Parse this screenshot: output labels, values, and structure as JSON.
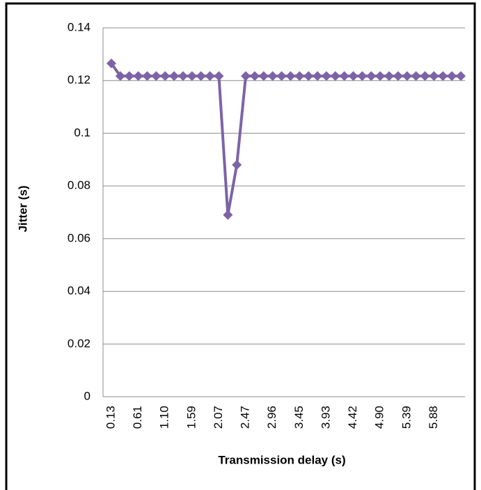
{
  "chart_data": {
    "type": "line",
    "x_label": "Transmission delay (s)",
    "y_label": "Jitter (s)",
    "categories": [
      "0.13",
      null,
      null,
      "0.61",
      null,
      null,
      "1.10",
      null,
      null,
      "1.59",
      null,
      null,
      "2.07",
      null,
      null,
      "2.47",
      null,
      null,
      "2.96",
      null,
      null,
      "3.45",
      null,
      null,
      "3.93",
      null,
      null,
      "4.42",
      null,
      null,
      "4.90",
      null,
      null,
      "5.39",
      null,
      null,
      "5.88",
      null,
      null,
      null
    ],
    "series": [
      {
        "color": "#7d63a6",
        "values": [
          0.1265,
          0.1217,
          0.1217,
          0.1217,
          0.1217,
          0.1217,
          0.1217,
          0.1217,
          0.1217,
          0.1217,
          0.1217,
          0.1217,
          0.1217,
          0.069,
          0.088,
          0.1217,
          0.1217,
          0.1217,
          0.1217,
          0.1217,
          0.1217,
          0.1217,
          0.1217,
          0.1217,
          0.1217,
          0.1217,
          0.1217,
          0.1217,
          0.1217,
          0.1217,
          0.1217,
          0.1217,
          0.1217,
          0.1217,
          0.1217,
          0.1217,
          0.1217,
          0.1217,
          0.1217,
          0.1217
        ]
      }
    ],
    "ylim": [
      0,
      0.14
    ],
    "yticks": [
      0,
      0.02,
      0.04,
      0.06,
      0.08,
      0.1,
      0.12,
      0.14
    ],
    "grid": true
  }
}
